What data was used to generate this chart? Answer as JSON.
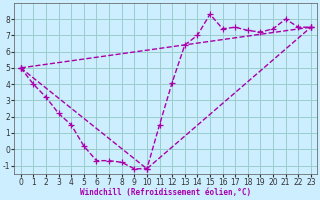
{
  "xlabel": "Windchill (Refroidissement éolien,°C)",
  "bg_color": "#cceeff",
  "line_color": "#aa00aa",
  "grid_color": "#99cccc",
  "xlim": [
    -0.5,
    23.5
  ],
  "ylim": [
    -1.5,
    9.0
  ],
  "xticks": [
    0,
    1,
    2,
    3,
    4,
    5,
    6,
    7,
    8,
    9,
    10,
    11,
    12,
    13,
    14,
    15,
    16,
    17,
    18,
    19,
    20,
    21,
    22,
    23
  ],
  "yticks": [
    -1,
    0,
    1,
    2,
    3,
    4,
    5,
    6,
    7,
    8
  ],
  "line1_x": [
    0,
    1,
    2,
    3,
    4,
    5,
    6,
    7,
    8,
    9,
    10,
    11,
    12,
    13,
    14,
    15,
    16,
    17,
    18,
    19,
    20,
    21,
    22,
    23
  ],
  "line1_y": [
    5.0,
    4.0,
    3.2,
    2.2,
    1.5,
    0.2,
    -0.7,
    -0.7,
    -0.8,
    -1.2,
    -1.2,
    1.5,
    4.1,
    6.4,
    7.0,
    8.3,
    7.4,
    7.5,
    7.3,
    7.2,
    7.4,
    8.0,
    7.5,
    7.5
  ],
  "line2_x": [
    0,
    10,
    23
  ],
  "line2_y": [
    5.0,
    -1.2,
    7.5
  ],
  "line3_x": [
    0,
    23
  ],
  "line3_y": [
    5.0,
    7.5
  ],
  "marker_size": 4,
  "line_width": 1.0,
  "tick_fontsize": 5.5,
  "xlabel_fontsize": 5.5
}
